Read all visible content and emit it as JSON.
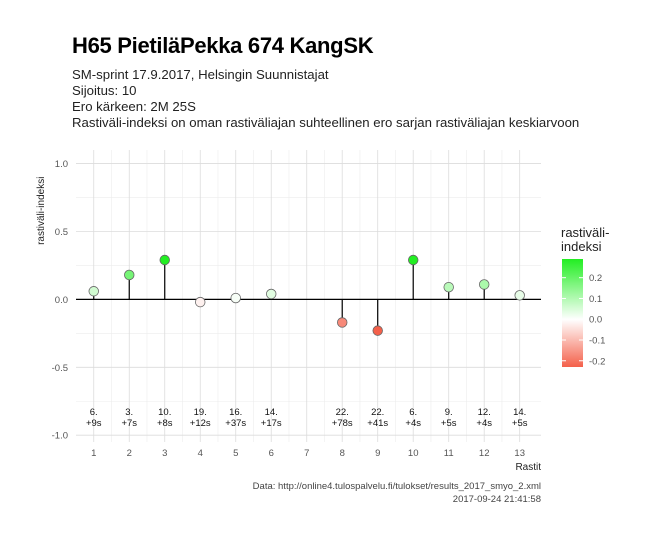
{
  "header": {
    "title": "H65 PietiläPekka 674 KangSK",
    "subtitle_lines": [
      "SM-sprint 17.9.2017, Helsingin Suunnistajat",
      "Sijoitus: 10",
      "Ero kärkeen: 2M 25S",
      "Rastiväli-indeksi on oman rastiväliajan suhteellinen ero sarjan rastiväliajan keskiarvoon"
    ]
  },
  "caption": {
    "source": "Data: http://online4.tulospalvelu.fi/tulokset/results_2017_smyo_2.xml",
    "timestamp": "2017-09-24 21:41:58"
  },
  "legend": {
    "title_line1": "rastiväli-",
    "title_line2": "indeksi",
    "ticks": [
      "0.2",
      "0.1",
      "0.0",
      "-0.1",
      "-0.2"
    ],
    "tick_values": [
      0.2,
      0.1,
      0.0,
      -0.1,
      -0.2
    ],
    "range": [
      -0.23,
      0.29
    ],
    "colors": {
      "high": "#22ee22",
      "mid": "#ffffff",
      "low": "#f4604a"
    }
  },
  "chart_data": {
    "type": "lollipop",
    "xlabel": "Rastit",
    "ylabel": "rastiväli-indeksi",
    "xlim": [
      0.5,
      13.6
    ],
    "ylim": [
      -1.05,
      1.1
    ],
    "x_ticks": [
      1,
      2,
      3,
      4,
      5,
      6,
      7,
      8,
      9,
      10,
      11,
      12,
      13
    ],
    "y_ticks": [
      -1.0,
      -0.5,
      0.0,
      0.5,
      1.0
    ],
    "y_tick_labels": [
      "-1.0",
      "-0.5",
      "0.0",
      "0.5",
      "1.0"
    ],
    "grid": true,
    "points": [
      {
        "x": 1,
        "y": 0.06,
        "rank": "6.",
        "time": "+9s"
      },
      {
        "x": 2,
        "y": 0.18,
        "rank": "3.",
        "time": "+7s"
      },
      {
        "x": 3,
        "y": 0.29,
        "rank": "10.",
        "time": "+8s"
      },
      {
        "x": 4,
        "y": -0.02,
        "rank": "19.",
        "time": "+12s"
      },
      {
        "x": 5,
        "y": 0.01,
        "rank": "16.",
        "time": "+37s"
      },
      {
        "x": 6,
        "y": 0.04,
        "rank": "14.",
        "time": "+17s"
      },
      {
        "x": 8,
        "y": -0.17,
        "rank": "22.",
        "time": "+78s"
      },
      {
        "x": 9,
        "y": -0.23,
        "rank": "22.",
        "time": "+41s"
      },
      {
        "x": 10,
        "y": 0.29,
        "rank": "6.",
        "time": "+4s"
      },
      {
        "x": 11,
        "y": 0.09,
        "rank": "9.",
        "time": "+5s"
      },
      {
        "x": 12,
        "y": 0.11,
        "rank": "12.",
        "time": "+4s"
      },
      {
        "x": 13,
        "y": 0.03,
        "rank": "14.",
        "time": "+5s"
      }
    ],
    "label_y": -0.88
  }
}
